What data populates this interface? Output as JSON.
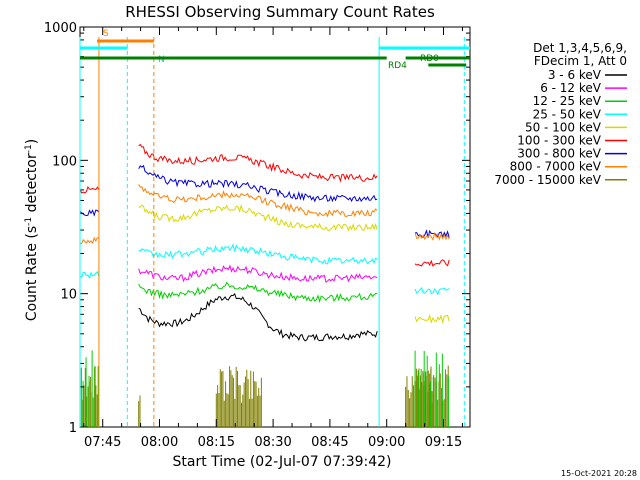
{
  "chart_data": {
    "type": "line",
    "title": "RHESSI Observing Summary Count Rates",
    "xlabel": "Start Time (02-Jul-07 07:39:42)",
    "ylabel": "Count Rate (s^-1 detector^-1)",
    "ylabel_parts": {
      "main": "Count Rate (s",
      "sup1": "-1",
      "mid": " detector",
      "sup2": "-1",
      "end": ")"
    },
    "y_scale": "log",
    "ylim": [
      1,
      1000
    ],
    "xlim_minutes": [
      -6,
      97
    ],
    "x_ticks": [
      {
        "m": 0,
        "label": "07:45"
      },
      {
        "m": 15,
        "label": "08:00"
      },
      {
        "m": 30,
        "label": "08:15"
      },
      {
        "m": 45,
        "label": "08:30"
      },
      {
        "m": 60,
        "label": "08:45"
      },
      {
        "m": 75,
        "label": "09:00"
      },
      {
        "m": 90,
        "label": "09:15"
      }
    ],
    "y_ticks": [
      {
        "v": 1,
        "label": "1"
      },
      {
        "v": 10,
        "label": "10"
      },
      {
        "v": 100,
        "label": "100"
      },
      {
        "v": 1000,
        "label": "1000"
      }
    ],
    "legend_header": [
      "Det 1,3,4,5,6,9,",
      "FDecim 1, Att 0"
    ],
    "footer": "15-Oct-2021 20:28",
    "series": [
      {
        "name": "3 - 6 keV",
        "color": "#000000",
        "seg1": [
          0,
          0,
          0
        ],
        "seg2": [
          7.8,
          6.5,
          6.0,
          6.0,
          6.0,
          6.3,
          7.0,
          8.0,
          9.0,
          9.5,
          9.5,
          9.0,
          8.0,
          6.5,
          5.5,
          5.0,
          4.8,
          4.7,
          4.7,
          4.7,
          4.8,
          4.8,
          4.8,
          5.0,
          5.0,
          5.0
        ],
        "seg3": [
          0,
          0,
          0
        ]
      },
      {
        "name": "6 - 12 keV",
        "color": "#ff00ff",
        "seg1": [
          0,
          0,
          0
        ],
        "seg2": [
          15,
          14.3,
          13.5,
          13,
          13,
          13.3,
          14,
          14.5,
          15,
          15.5,
          15.5,
          15.3,
          14.8,
          14.2,
          13.8,
          13.5,
          13.2,
          13,
          13,
          13,
          13,
          13,
          13.2,
          13.2,
          13.3,
          13.3
        ],
        "seg3": [
          0,
          0,
          0
        ]
      },
      {
        "name": "12 - 25 keV",
        "color": "#00d000",
        "seg1": [
          0,
          0,
          0
        ],
        "seg2": [
          11.2,
          10.5,
          10,
          9.7,
          9.8,
          10,
          10.4,
          10.8,
          11.2,
          11.5,
          11.5,
          11.3,
          11,
          10.6,
          10.2,
          9.9,
          9.6,
          9.4,
          9.3,
          9.3,
          9.3,
          9.4,
          9.4,
          9.5,
          9.5,
          9.5
        ],
        "seg3": [
          0,
          0,
          0
        ]
      },
      {
        "name": "25 - 50 keV",
        "color": "#00ffff",
        "seg1": [
          14,
          14,
          14
        ],
        "seg2": [
          21,
          20,
          19.5,
          19.5,
          19.7,
          20,
          20.5,
          21,
          21.5,
          22,
          22,
          21.8,
          21.2,
          20.5,
          19.8,
          19.2,
          18.7,
          18.3,
          18,
          17.8,
          17.7,
          17.6,
          17.6,
          17.7,
          17.7,
          17.8
        ],
        "seg3": [
          10.5,
          10.5,
          10.5
        ]
      },
      {
        "name": "50 - 100 keV",
        "color": "#d8d800",
        "seg1": [
          0,
          0,
          0
        ],
        "seg2": [
          45,
          41,
          38,
          37,
          37,
          38,
          40,
          42,
          43,
          44,
          44,
          43,
          41,
          38,
          36,
          34,
          33,
          32.5,
          32,
          31.5,
          31.5,
          31.5,
          31.5,
          31.5,
          31.5,
          31.8
        ],
        "seg3": [
          6.5,
          6.5,
          6.5
        ]
      },
      {
        "name": "100 - 300 keV",
        "color": "#ff0000",
        "seg1": [
          60,
          60,
          60
        ],
        "seg2": [
          128,
          112,
          104,
          100,
          99,
          99,
          100,
          102,
          104,
          105,
          105,
          103,
          99,
          94,
          89,
          85,
          81,
          78,
          76,
          75,
          74,
          74,
          74,
          74,
          74,
          75
        ],
        "seg3": [
          17,
          17,
          17
        ]
      },
      {
        "name": "300 - 800 keV",
        "color": "#0000e0",
        "seg1": [
          40,
          40,
          40
        ],
        "seg2": [
          92,
          80,
          74,
          70,
          68,
          67,
          67,
          67,
          67,
          67,
          66,
          65,
          63,
          60,
          58,
          56,
          55,
          54,
          53,
          52,
          52,
          52,
          52,
          52,
          52,
          53
        ],
        "seg3": [
          28,
          28,
          28
        ]
      },
      {
        "name": "800 - 7000 keV",
        "color": "#ff8000",
        "seg1": [
          25,
          25,
          25
        ],
        "seg2": [
          66,
          58,
          54,
          52,
          51,
          51,
          52,
          53,
          54,
          55,
          55,
          54,
          52,
          50,
          48,
          46,
          44,
          42,
          41,
          40,
          40,
          40,
          40,
          40,
          40,
          41
        ],
        "seg3": [
          27,
          27,
          27
        ]
      },
      {
        "name": "7000 - 15000 keV",
        "color": "#808000",
        "seg1": [
          0,
          0,
          0
        ],
        "seg2": [
          0,
          0,
          0,
          0,
          0,
          0,
          0,
          0,
          0,
          0,
          0,
          0,
          0,
          0,
          0,
          0,
          0,
          0,
          0,
          0,
          0,
          0,
          0,
          0,
          0,
          0
        ],
        "seg3": [
          0,
          0,
          0
        ]
      }
    ],
    "segments_minutes": {
      "seg1": [
        -6,
        -1
      ],
      "seg2": [
        9.5,
        72.5
      ],
      "seg3": [
        82.5,
        91.5
      ]
    },
    "flags": [
      {
        "label": "S",
        "color": "#ff8000",
        "start": -1.5,
        "end": 13.5
      },
      {
        "label": "N",
        "color": "#00ffff",
        "start": -6,
        "end": 6.5
      },
      {
        "label": "RD0",
        "color": "#00ffff",
        "start": 73,
        "end": 97
      },
      {
        "label": "RD4",
        "color": "#008000",
        "start": -6,
        "end": 97
      }
    ]
  }
}
